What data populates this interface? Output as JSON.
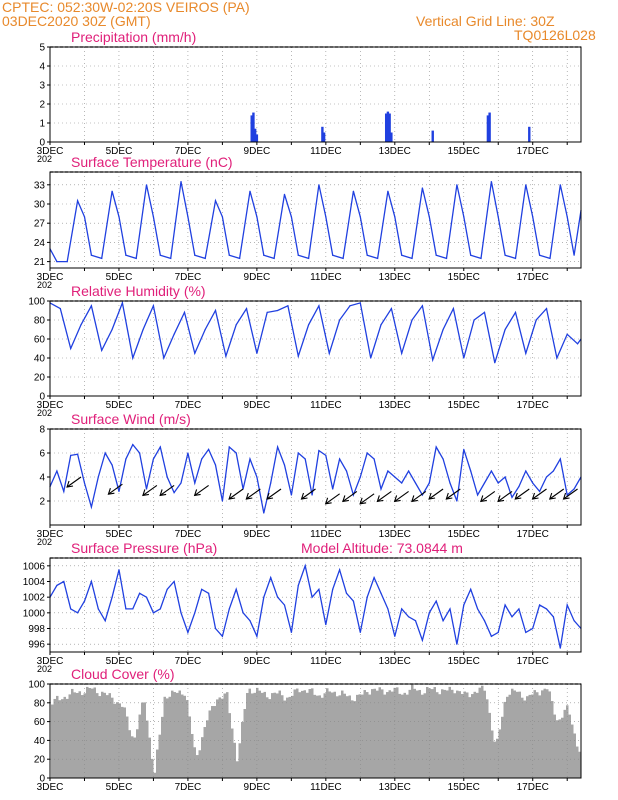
{
  "header": {
    "line1": "CPTEC:   052:30W-02:20S   VEIROS (PA)",
    "line2": "03DEC2020 30Z (GMT)",
    "grid_note": "Vertical Grid Line: 30Z",
    "code": "TQ0126L028"
  },
  "x_tick_labels": [
    "3DEC",
    "5DEC",
    "7DEC",
    "9DEC",
    "11DEC",
    "13DEC",
    "15DEC",
    "17DEC"
  ],
  "x_label_extra": "202",
  "colors": {
    "accent": "#e8892b",
    "title": "#e0207a",
    "line": "#2040e0",
    "cloud": "#a6a6a6"
  },
  "chart_data": [
    {
      "id": "precip",
      "type": "bar",
      "title": "Precipitation (mm/h)",
      "ylim": [
        0,
        5
      ],
      "yticks": [
        "0",
        "1",
        "2",
        "3",
        "4",
        "5"
      ],
      "x_unit": "day offset from 3DEC 00Z",
      "x": [
        5.85,
        5.9,
        5.95,
        6.0,
        7.9,
        7.95,
        9.75,
        9.8,
        9.85,
        9.9,
        11.1,
        12.7,
        12.75,
        13.9
      ],
      "values": [
        1.4,
        1.55,
        0.7,
        0.4,
        0.8,
        0.5,
        1.5,
        1.6,
        1.5,
        0.5,
        0.6,
        1.4,
        1.55,
        0.8
      ]
    },
    {
      "id": "temp",
      "type": "line",
      "title": "Surface Temperature (nC)",
      "ylim": [
        20,
        35
      ],
      "yticks": [
        "21",
        "24",
        "27",
        "30",
        "33"
      ],
      "ytick_values": [
        21,
        24,
        27,
        30,
        33
      ],
      "x": [
        0,
        0.2,
        0.5,
        0.8,
        1.0,
        1.2,
        1.5,
        1.8,
        2.0,
        2.2,
        2.5,
        2.8,
        3.0,
        3.2,
        3.5,
        3.8,
        4.0,
        4.2,
        4.5,
        4.8,
        5.0,
        5.2,
        5.5,
        5.8,
        6.0,
        6.2,
        6.5,
        6.8,
        7.0,
        7.2,
        7.5,
        7.8,
        8.0,
        8.2,
        8.5,
        8.8,
        9.0,
        9.2,
        9.5,
        9.8,
        10.0,
        10.2,
        10.5,
        10.8,
        11.0,
        11.2,
        11.5,
        11.8,
        12.0,
        12.2,
        12.5,
        12.8,
        13.0,
        13.2,
        13.5,
        13.8,
        14.0,
        14.2,
        14.5,
        14.8,
        15.0,
        15.2,
        15.4
      ],
      "values": [
        23,
        21,
        21,
        30.5,
        28,
        22,
        21.5,
        32,
        28,
        22,
        21.5,
        33,
        28,
        22,
        21.5,
        33.5,
        28,
        22,
        21.5,
        30.5,
        28,
        22,
        21.5,
        32,
        28,
        22,
        21.5,
        31.5,
        28,
        22,
        21.5,
        33,
        28,
        22,
        21.5,
        32,
        28,
        22,
        21.5,
        32,
        28,
        22,
        21.5,
        32.5,
        28,
        22,
        21.5,
        33,
        28,
        22,
        21.5,
        33.5,
        28,
        22,
        21.5,
        33,
        28,
        22,
        21.5,
        33,
        28,
        22,
        29
      ]
    },
    {
      "id": "rh",
      "type": "line",
      "title": "Relative Humidity (%)",
      "ylim": [
        0,
        100
      ],
      "yticks": [
        "0",
        "20",
        "40",
        "60",
        "80",
        "100"
      ],
      "ytick_values": [
        0,
        20,
        40,
        60,
        80,
        100
      ],
      "x": [
        0,
        0.3,
        0.6,
        0.9,
        1.2,
        1.5,
        1.8,
        2.1,
        2.4,
        2.7,
        3.0,
        3.3,
        3.6,
        3.9,
        4.2,
        4.5,
        4.8,
        5.1,
        5.4,
        5.7,
        6.0,
        6.3,
        6.6,
        6.9,
        7.2,
        7.5,
        7.8,
        8.1,
        8.4,
        8.7,
        9.0,
        9.3,
        9.6,
        9.9,
        10.2,
        10.5,
        10.8,
        11.1,
        11.4,
        11.7,
        12.0,
        12.3,
        12.6,
        12.9,
        13.2,
        13.5,
        13.8,
        14.1,
        14.4,
        14.7,
        15.0,
        15.3,
        15.4
      ],
      "values": [
        98,
        92,
        50,
        75,
        95,
        48,
        70,
        98,
        40,
        70,
        95,
        40,
        65,
        88,
        45,
        70,
        90,
        42,
        75,
        92,
        45,
        88,
        90,
        95,
        42,
        75,
        95,
        45,
        80,
        95,
        98,
        40,
        75,
        92,
        45,
        80,
        95,
        38,
        70,
        92,
        40,
        80,
        88,
        35,
        70,
        88,
        45,
        80,
        92,
        40,
        65,
        55,
        60
      ]
    },
    {
      "id": "wind",
      "type": "line",
      "title": "Surface Wind (m/s)",
      "ylim": [
        0,
        8
      ],
      "yticks": [
        "2",
        "4",
        "6",
        "8"
      ],
      "ytick_values": [
        2,
        4,
        6,
        8
      ],
      "x": [
        0,
        0.2,
        0.4,
        0.6,
        0.8,
        1.0,
        1.2,
        1.4,
        1.6,
        1.8,
        2.0,
        2.2,
        2.4,
        2.6,
        2.8,
        3.0,
        3.2,
        3.4,
        3.6,
        3.8,
        4.0,
        4.2,
        4.4,
        4.6,
        4.8,
        5.0,
        5.2,
        5.4,
        5.6,
        5.8,
        6.0,
        6.2,
        6.4,
        6.6,
        6.8,
        7.0,
        7.2,
        7.4,
        7.6,
        7.8,
        8.0,
        8.2,
        8.4,
        8.6,
        8.8,
        9.0,
        9.2,
        9.4,
        9.6,
        9.8,
        10.0,
        10.2,
        10.4,
        10.6,
        10.8,
        11.0,
        11.2,
        11.4,
        11.6,
        11.8,
        12.0,
        12.2,
        12.4,
        12.6,
        12.8,
        13.0,
        13.2,
        13.4,
        13.6,
        13.8,
        14.0,
        14.2,
        14.4,
        14.6,
        14.8,
        15.0,
        15.2,
        15.4
      ],
      "values": [
        3.2,
        4.5,
        2.8,
        5.8,
        5.9,
        3.5,
        1.5,
        4.0,
        6.0,
        5.0,
        2.8,
        5.5,
        6.7,
        6.0,
        3.0,
        5.5,
        6.5,
        4.0,
        2.7,
        3.5,
        6.0,
        3.5,
        5.5,
        6.3,
        5.0,
        2.0,
        6.5,
        6.0,
        3.0,
        5.5,
        4.0,
        1.0,
        3.5,
        6.5,
        5.0,
        2.5,
        6.0,
        5.5,
        2.5,
        6.2,
        5.8,
        3.0,
        5.5,
        4.5,
        2.5,
        4.0,
        6.0,
        5.5,
        3.0,
        4.5,
        4.0,
        3.5,
        4.5,
        3.5,
        2.5,
        3.5,
        6.5,
        5.5,
        3.5,
        2.0,
        6.3,
        4.5,
        2.5,
        3.5,
        4.5,
        3.5,
        4.0,
        2.3,
        3.2,
        4.5,
        3.5,
        2.8,
        4.0,
        4.5,
        5.5,
        2.5,
        3.0,
        4.0
      ],
      "vectors": {
        "x": [
          0.9,
          2.1,
          3.1,
          3.6,
          4.6,
          5.6,
          6.1,
          6.7,
          7.7,
          8.4,
          8.9,
          9.4,
          9.9,
          10.4,
          10.9,
          11.4,
          11.9,
          12.9,
          13.4,
          13.9,
          14.4,
          14.9,
          15.3
        ],
        "y": [
          4.0,
          3.4,
          3.3,
          3.3,
          3.3,
          3.0,
          3.0,
          3.0,
          3.0,
          2.6,
          2.8,
          2.6,
          2.8,
          2.8,
          2.8,
          3.0,
          3.0,
          2.8,
          2.8,
          3.0,
          3.0,
          3.0,
          3.0
        ]
      }
    },
    {
      "id": "pressure",
      "type": "line",
      "title": "Surface Pressure (hPa)",
      "annotation": "Model Altitude: 73.0844 m",
      "ylim": [
        995,
        1007
      ],
      "yticks": [
        "996",
        "998",
        "1000",
        "1002",
        "1004",
        "1006"
      ],
      "ytick_values": [
        996,
        998,
        1000,
        1002,
        1004,
        1006
      ],
      "x": [
        0,
        0.2,
        0.4,
        0.6,
        0.8,
        1.0,
        1.2,
        1.4,
        1.6,
        1.8,
        2.0,
        2.2,
        2.4,
        2.6,
        2.8,
        3.0,
        3.2,
        3.4,
        3.6,
        3.8,
        4.0,
        4.2,
        4.4,
        4.6,
        4.8,
        5.0,
        5.2,
        5.4,
        5.6,
        5.8,
        6.0,
        6.2,
        6.4,
        6.6,
        6.8,
        7.0,
        7.2,
        7.4,
        7.6,
        7.8,
        8.0,
        8.2,
        8.4,
        8.6,
        8.8,
        9.0,
        9.2,
        9.4,
        9.6,
        9.8,
        10.0,
        10.2,
        10.4,
        10.6,
        10.8,
        11.0,
        11.2,
        11.4,
        11.6,
        11.8,
        12.0,
        12.2,
        12.4,
        12.6,
        12.8,
        13.0,
        13.2,
        13.4,
        13.6,
        13.8,
        14.0,
        14.2,
        14.4,
        14.6,
        14.8,
        15.0,
        15.2,
        15.4
      ],
      "values": [
        1002,
        1003.5,
        1004,
        1000.5,
        1000,
        1001.5,
        1004,
        1000.5,
        999,
        1002,
        1005.5,
        1000.5,
        1000.5,
        1002.5,
        1002,
        1000,
        1000.5,
        1003,
        1004,
        1000,
        997.5,
        1000,
        1003,
        1002.5,
        998,
        997,
        1000.5,
        1003,
        1000,
        999,
        997,
        1002,
        1004.5,
        1002,
        1001,
        997.5,
        1003.5,
        1006,
        1002,
        1003,
        998.5,
        1003,
        1005.5,
        1002.5,
        1001.5,
        997.5,
        1002,
        1004.5,
        1002.5,
        1000.5,
        997,
        1000.5,
        999.5,
        999,
        996.5,
        1000,
        1001.5,
        999,
        1000.5,
        996,
        1001,
        1003,
        1000.5,
        999,
        997,
        997.5,
        1001,
        999.5,
        1000.5,
        997.5,
        998,
        1001,
        1000.5,
        999.5,
        995.5,
        1001,
        999,
        998
      ]
    },
    {
      "id": "cloud",
      "type": "area",
      "title": "Cloud Cover (%)",
      "ylim": [
        0,
        100
      ],
      "yticks": [
        "0",
        "20",
        "40",
        "60",
        "80",
        "100"
      ],
      "ytick_values": [
        0,
        20,
        40,
        60,
        80,
        100
      ],
      "x": [
        0,
        0.3,
        0.6,
        0.9,
        1.2,
        1.5,
        1.8,
        2.1,
        2.4,
        2.7,
        3.0,
        3.3,
        3.6,
        3.9,
        4.2,
        4.5,
        4.8,
        5.1,
        5.4,
        5.7,
        6.0,
        6.3,
        6.6,
        6.9,
        7.2,
        7.5,
        7.8,
        8.1,
        8.4,
        8.7,
        9.0,
        9.3,
        9.6,
        9.9,
        10.2,
        10.5,
        10.8,
        11.1,
        11.4,
        11.7,
        12.0,
        12.3,
        12.6,
        12.9,
        13.2,
        13.5,
        13.8,
        14.1,
        14.4,
        14.7,
        15.0,
        15.3,
        15.4
      ],
      "values": [
        80,
        85,
        90,
        92,
        95,
        90,
        85,
        75,
        40,
        85,
        5,
        88,
        90,
        92,
        20,
        60,
        85,
        88,
        20,
        95,
        92,
        88,
        90,
        85,
        95,
        92,
        88,
        92,
        90,
        85,
        88,
        95,
        92,
        94,
        90,
        95,
        92,
        95,
        92,
        95,
        88,
        92,
        95,
        30,
        90,
        92,
        85,
        92,
        95,
        60,
        75,
        30,
        20
      ]
    }
  ]
}
